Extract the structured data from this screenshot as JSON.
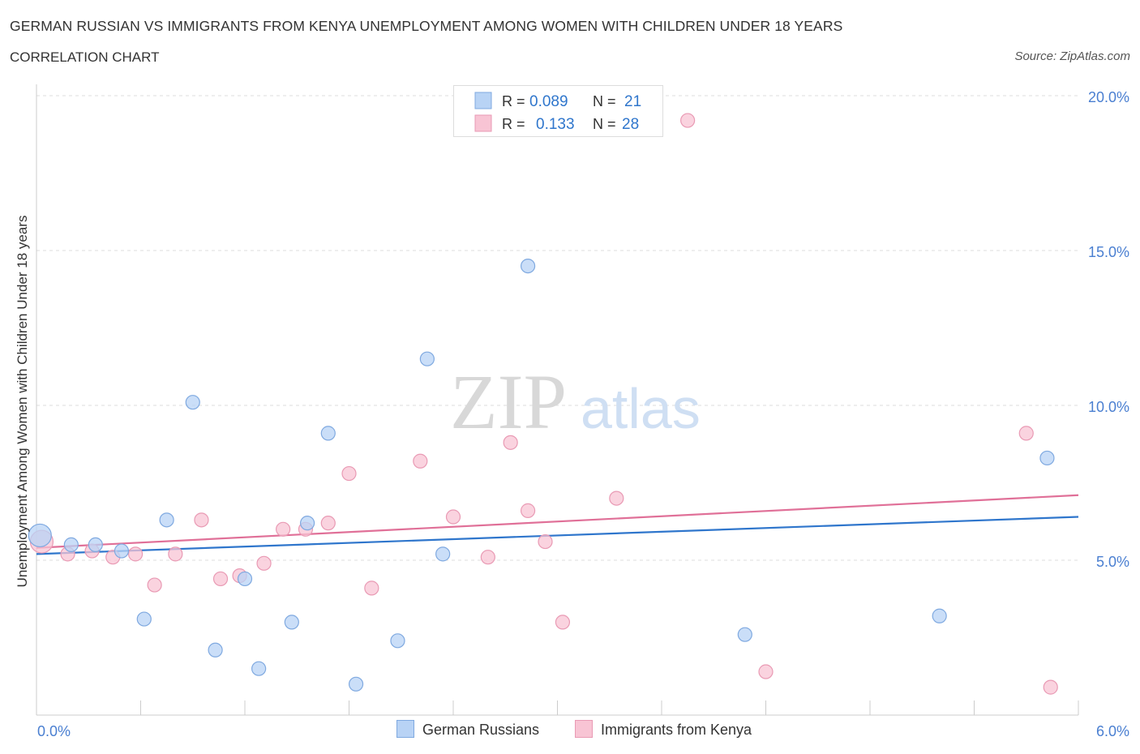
{
  "title": "GERMAN RUSSIAN VS IMMIGRANTS FROM KENYA UNEMPLOYMENT AMONG WOMEN WITH CHILDREN UNDER 18 YEARS",
  "subtitle": "CORRELATION CHART",
  "source": "Source: ZipAtlas.com",
  "watermark": {
    "zip": "ZIP",
    "atlas": "atlas"
  },
  "legend": {
    "rows": [
      {
        "r_label": "R =",
        "r_value": "0.089",
        "n_label": "N =",
        "n_value": "21",
        "color": "#b8d3f5"
      },
      {
        "r_label": "R =",
        "r_value": "0.133",
        "n_label": "N =",
        "n_value": "28",
        "color": "#f8c4d4"
      }
    ]
  },
  "colors": {
    "blue_fill": "#b8d3f5",
    "blue_stroke": "#7fa9e0",
    "blue_line": "#2f76cc",
    "pink_fill": "#f8c4d4",
    "pink_stroke": "#e99ab4",
    "pink_line": "#e07098",
    "axis_text": "#4a7fd1"
  },
  "chart_data": {
    "type": "scatter",
    "xlabel": "",
    "ylabel": "Unemployment Among Women with Children Under 18 years",
    "xlim": [
      0,
      6
    ],
    "ylim": [
      0,
      20
    ],
    "x_tick_labels": [
      "0.0%",
      "6.0%"
    ],
    "y_tick_labels": [
      "5.0%",
      "10.0%",
      "15.0%",
      "20.0%"
    ],
    "y_ticks": [
      5,
      10,
      15,
      20
    ],
    "grid": true,
    "legend_position": "bottom",
    "series": [
      {
        "name": "German Russians",
        "color": "#b8d3f5",
        "trend": [
          [
            0,
            5.2
          ],
          [
            6,
            6.4
          ]
        ],
        "points": [
          [
            0.02,
            5.8
          ],
          [
            0.2,
            5.5
          ],
          [
            0.34,
            5.5
          ],
          [
            0.49,
            5.3
          ],
          [
            0.62,
            3.1
          ],
          [
            0.75,
            6.3
          ],
          [
            0.9,
            10.1
          ],
          [
            1.03,
            2.1
          ],
          [
            1.2,
            4.4
          ],
          [
            1.28,
            1.5
          ],
          [
            1.47,
            3.0
          ],
          [
            1.56,
            6.2
          ],
          [
            1.68,
            9.1
          ],
          [
            1.84,
            1.0
          ],
          [
            2.08,
            2.4
          ],
          [
            2.25,
            11.5
          ],
          [
            2.34,
            5.2
          ],
          [
            2.83,
            14.5
          ],
          [
            4.08,
            2.6
          ],
          [
            5.2,
            3.2
          ],
          [
            5.82,
            8.3
          ]
        ]
      },
      {
        "name": "Immigrants from Kenya",
        "color": "#f8c4d4",
        "trend": [
          [
            0,
            5.4
          ],
          [
            6,
            7.1
          ]
        ],
        "points": [
          [
            0.03,
            5.6
          ],
          [
            0.18,
            5.2
          ],
          [
            0.32,
            5.3
          ],
          [
            0.44,
            5.1
          ],
          [
            0.57,
            5.2
          ],
          [
            0.68,
            4.2
          ],
          [
            0.8,
            5.2
          ],
          [
            0.95,
            6.3
          ],
          [
            1.06,
            4.4
          ],
          [
            1.17,
            4.5
          ],
          [
            1.31,
            4.9
          ],
          [
            1.42,
            6.0
          ],
          [
            1.55,
            6.0
          ],
          [
            1.68,
            6.2
          ],
          [
            1.8,
            7.8
          ],
          [
            1.93,
            4.1
          ],
          [
            2.21,
            8.2
          ],
          [
            2.4,
            6.4
          ],
          [
            2.6,
            5.1
          ],
          [
            2.73,
            8.8
          ],
          [
            2.83,
            6.6
          ],
          [
            2.93,
            5.6
          ],
          [
            3.03,
            3.0
          ],
          [
            3.34,
            7.0
          ],
          [
            3.75,
            19.2
          ],
          [
            4.2,
            1.4
          ],
          [
            5.7,
            9.1
          ],
          [
            5.84,
            0.9
          ]
        ]
      }
    ]
  }
}
